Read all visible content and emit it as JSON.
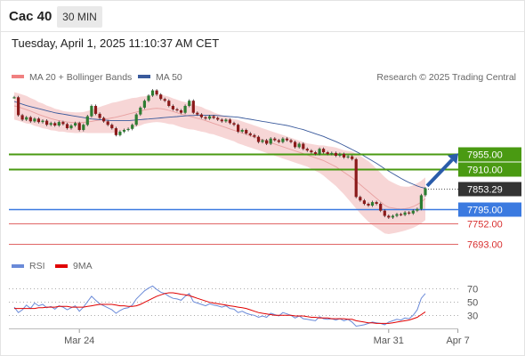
{
  "header": {
    "symbol": "Cac 40",
    "timeframe": "30 MIN",
    "datetime": "Tuesday, April 1, 2025 11:10:37 AM CET"
  },
  "legend": {
    "bollinger": "MA 20 + Bollinger Bands",
    "ma50": "MA 50",
    "credit": "Research © 2025 Trading Central",
    "rsi": "RSI",
    "rsi_ma": "9MA"
  },
  "colors": {
    "resistance": "#4a9a12",
    "current": "#333333",
    "pivot": "#3b7ae0",
    "support": "#e06666",
    "bollinger_fill": "#f6cfcf",
    "ma20": "#e8a0a0",
    "ma50": "#3a5a9c",
    "arrow": "#2a5caa",
    "rsi": "#6a8ad8",
    "rsi_ma": "#e00000",
    "candle": "#2e7d32"
  },
  "chart_data": {
    "type": "candlestick",
    "ylim": [
      7665,
      8240
    ],
    "x_ticks": [
      "Mar 24",
      "Mar 31",
      "Apr 7"
    ],
    "levels": [
      {
        "name": "resistance-2",
        "value": 7955.0,
        "label": "7955.00",
        "kind": "resistance"
      },
      {
        "name": "resistance-1",
        "value": 7910.0,
        "label": "7910.00",
        "kind": "resistance"
      },
      {
        "name": "current",
        "value": 7853.29,
        "label": "7853.29",
        "kind": "current"
      },
      {
        "name": "pivot",
        "value": 7795.0,
        "label": "7795.00",
        "kind": "pivot"
      },
      {
        "name": "support-1",
        "value": 7752.0,
        "label": "7752.00",
        "kind": "support"
      },
      {
        "name": "support-2",
        "value": 7693.0,
        "label": "7693.00",
        "kind": "support"
      }
    ],
    "closes": [
      8120,
      8068,
      8055,
      8062,
      8050,
      8058,
      8048,
      8052,
      8040,
      8045,
      8038,
      8048,
      8042,
      8030,
      8038,
      8045,
      8025,
      8040,
      8065,
      8095,
      8072,
      8060,
      8050,
      8040,
      8030,
      8010,
      8020,
      8025,
      8028,
      8040,
      8070,
      8090,
      8110,
      8125,
      8140,
      8128,
      8115,
      8110,
      8095,
      8085,
      8082,
      8075,
      8095,
      8110,
      8075,
      8070,
      8062,
      8058,
      8065,
      8060,
      8055,
      8050,
      8055,
      8045,
      8040,
      8020,
      8025,
      8015,
      8010,
      8005,
      7990,
      7995,
      7985,
      8000,
      7995,
      7990,
      8000,
      7995,
      7990,
      7975,
      7985,
      7970,
      7965,
      7960,
      7955,
      7970,
      7960,
      7955,
      7958,
      7950,
      7955,
      7945,
      7948,
      7940,
      7830,
      7820,
      7810,
      7805,
      7815,
      7810,
      7790,
      7775,
      7770,
      7775,
      7780,
      7778,
      7785,
      7782,
      7790,
      7795,
      7835,
      7855
    ],
    "ma20": [
      8095,
      8092,
      8088,
      8084,
      8080,
      8075,
      8070,
      8066,
      8062,
      8058,
      8055,
      8052,
      8050,
      8048,
      8047,
      8046,
      8046,
      8047,
      8048,
      8050,
      8052,
      8054,
      8056,
      8058,
      8060,
      8062,
      8065,
      8068,
      8071,
      8074,
      8077,
      8080,
      8083,
      8085,
      8087,
      8088,
      8087,
      8085,
      8082,
      8079,
      8075,
      8071,
      8068,
      8065,
      8062,
      8059,
      8056,
      8052,
      8048,
      8044,
      8040,
      8036,
      8032,
      8028,
      8024,
      8020,
      8016,
      8012,
      8008,
      8004,
      8000,
      7996,
      7992,
      7988,
      7984,
      7980,
      7976,
      7972,
      7968,
      7964,
      7960,
      7956,
      7952,
      7948,
      7944,
      7940,
      7936,
      7930,
      7924,
      7918,
      7910,
      7902,
      7894,
      7886,
      7876,
      7866,
      7856,
      7846,
      7836,
      7826,
      7816,
      7806,
      7800,
      7798,
      7796,
      7795,
      7796,
      7798,
      7802,
      7808,
      7815,
      7825
    ],
    "ma50": [
      8108,
      8104,
      8100,
      8096,
      8093,
      8090,
      8087,
      8084,
      8081,
      8078,
      8075,
      8073,
      8071,
      8069,
      8067,
      8065,
      8063,
      8061,
      8059,
      8057,
      8056,
      8055,
      8054,
      8053,
      8052,
      8052,
      8052,
      8052,
      8052,
      8053,
      8054,
      8055,
      8056,
      8057,
      8058,
      8059,
      8060,
      8061,
      8062,
      8063,
      8064,
      8065,
      8066,
      8067,
      8067,
      8068,
      8068,
      8068,
      8068,
      8068,
      8067,
      8066,
      8065,
      8064,
      8063,
      8062,
      8060,
      8058,
      8056,
      8054,
      8052,
      8050,
      8048,
      8046,
      8044,
      8042,
      8040,
      8038,
      8035,
      8032,
      8029,
      8026,
      8022,
      8018,
      8014,
      8010,
      8006,
      8001,
      7996,
      7991,
      7986,
      7980,
      7974,
      7968,
      7962,
      7956,
      7949,
      7942,
      7935,
      7928,
      7920,
      7912,
      7905,
      7898,
      7891,
      7884,
      7878,
      7872,
      7867,
      7862,
      7858,
      7855
    ],
    "bb_half_width": [
      40,
      40,
      40,
      40,
      38,
      38,
      36,
      36,
      34,
      34,
      32,
      32,
      30,
      30,
      30,
      30,
      30,
      30,
      32,
      34,
      36,
      38,
      40,
      42,
      44,
      44,
      44,
      44,
      44,
      44,
      42,
      42,
      40,
      40,
      40,
      40,
      40,
      40,
      40,
      38,
      38,
      38,
      38,
      38,
      36,
      36,
      36,
      34,
      34,
      32,
      32,
      32,
      32,
      32,
      32,
      34,
      34,
      34,
      34,
      34,
      34,
      34,
      34,
      34,
      34,
      34,
      34,
      34,
      34,
      34,
      34,
      34,
      34,
      36,
      38,
      40,
      44,
      48,
      52,
      56,
      60,
      64,
      70,
      76,
      80,
      84,
      86,
      88,
      88,
      86,
      84,
      82,
      78,
      74,
      70,
      66,
      64,
      62,
      62,
      62,
      62,
      62
    ],
    "forecast_arrow": {
      "from": 7862,
      "to": 7957
    },
    "rsi": {
      "levels": [
        70,
        50,
        30
      ],
      "ylim": [
        12,
        84
      ],
      "values": [
        42,
        34,
        38,
        45,
        40,
        48,
        44,
        46,
        41,
        43,
        39,
        44,
        42,
        38,
        41,
        44,
        36,
        42,
        50,
        58,
        52,
        47,
        44,
        41,
        38,
        33,
        37,
        40,
        41,
        45,
        54,
        60,
        66,
        70,
        73,
        68,
        64,
        62,
        58,
        55,
        54,
        52,
        58,
        62,
        50,
        48,
        46,
        44,
        47,
        45,
        44,
        42,
        44,
        40,
        39,
        34,
        36,
        33,
        31,
        30,
        27,
        29,
        27,
        33,
        31,
        29,
        34,
        32,
        30,
        26,
        29,
        25,
        24,
        23,
        22,
        28,
        25,
        24,
        25,
        23,
        25,
        22,
        24,
        20,
        14,
        15,
        16,
        18,
        20,
        19,
        18,
        16,
        20,
        22,
        24,
        23,
        26,
        25,
        30,
        38,
        55,
        62
      ],
      "ma9": [
        40,
        40,
        40,
        40,
        40,
        40,
        41,
        41,
        42,
        42,
        42,
        43,
        43,
        43,
        42,
        42,
        42,
        42,
        43,
        44,
        45,
        46,
        46,
        46,
        46,
        45,
        44,
        44,
        43,
        43,
        44,
        46,
        49,
        52,
        55,
        58,
        60,
        62,
        63,
        63,
        62,
        61,
        60,
        59,
        57,
        55,
        53,
        51,
        49,
        48,
        47,
        46,
        45,
        44,
        43,
        42,
        41,
        40,
        38,
        36,
        34,
        33,
        32,
        31,
        30,
        30,
        30,
        30,
        30,
        29,
        29,
        29,
        28,
        27,
        27,
        26,
        26,
        26,
        25,
        25,
        25,
        25,
        24,
        24,
        22,
        21,
        20,
        19,
        19,
        18,
        18,
        18,
        18,
        19,
        20,
        21,
        22,
        23,
        25,
        27,
        31,
        35
      ]
    }
  }
}
